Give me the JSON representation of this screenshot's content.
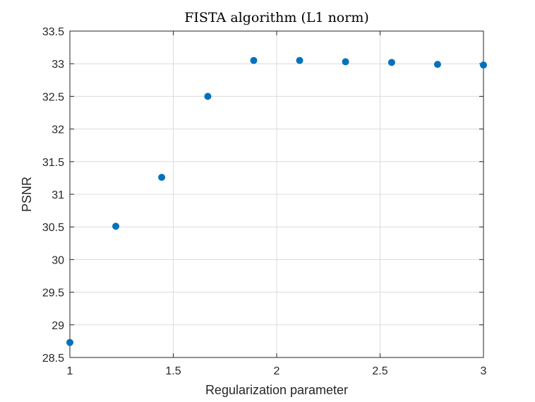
{
  "chart_data": {
    "type": "scatter",
    "title": "FISTA algorithm (L1 norm)",
    "xlabel": "Regularization parameter",
    "ylabel": "PSNR",
    "xlim": [
      1,
      3
    ],
    "ylim": [
      28.5,
      33.5
    ],
    "xticks": [
      1,
      1.5,
      2,
      2.5,
      3
    ],
    "xtick_labels": [
      "1",
      "1.5",
      "2",
      "2.5",
      "3"
    ],
    "yticks": [
      28.5,
      29,
      29.5,
      30,
      30.5,
      31,
      31.5,
      32,
      32.5,
      33,
      33.5
    ],
    "ytick_labels": [
      "28.5",
      "29",
      "29.5",
      "30",
      "30.5",
      "31",
      "31.5",
      "32",
      "32.5",
      "33",
      "33.5"
    ],
    "grid": true,
    "marker_color": "#0072BD",
    "series": [
      {
        "x": [
          1.0,
          1.222,
          1.444,
          1.667,
          1.889,
          2.111,
          2.333,
          2.556,
          2.778,
          3.0
        ],
        "y": [
          28.73,
          30.51,
          31.26,
          32.5,
          33.05,
          33.05,
          33.03,
          33.02,
          32.99,
          32.98
        ]
      }
    ]
  }
}
